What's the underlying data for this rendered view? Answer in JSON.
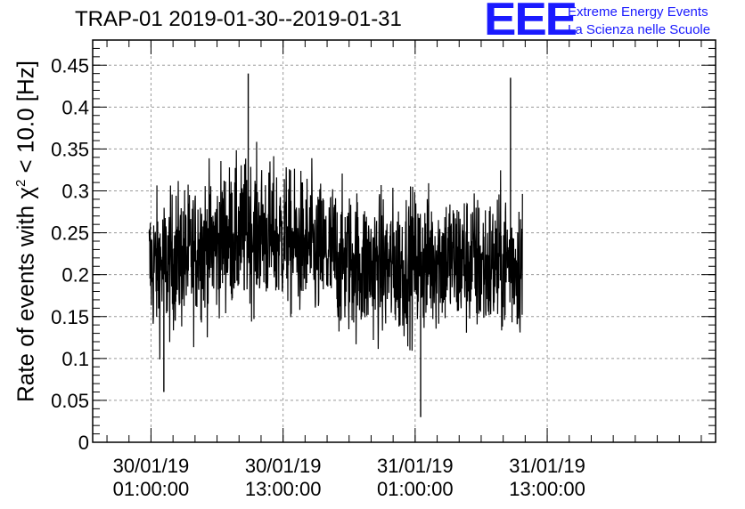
{
  "title": "TRAP-01 2019-01-30--2019-01-31",
  "logo": {
    "mark": "EEE",
    "line1": "Extreme Energy Events",
    "line2": "La Scienza nelle Scuole",
    "color": "#1a1aff"
  },
  "chart_data": {
    "type": "line",
    "title": "TRAP-01 2019-01-30--2019-01-31",
    "ylabel_prefix": "Rate of events with ",
    "ylabel_symbol": "χ",
    "ylabel_sup": "2",
    "ylabel_suffix": " < 10.0 [Hz]",
    "ylim": [
      0,
      0.48
    ],
    "yticks": [
      "0",
      "0.05",
      "0.1",
      "0.15",
      "0.2",
      "0.25",
      "0.3",
      "0.35",
      "0.4",
      "0.45"
    ],
    "xlim_hours_from_30_01_19_00_00": [
      -4.3,
      52.3
    ],
    "xticks": [
      {
        "hour": 1,
        "date": "30/01/19",
        "time": "01:00:00"
      },
      {
        "hour": 13,
        "date": "30/01/19",
        "time": "13:00:00"
      },
      {
        "hour": 25,
        "date": "31/01/19",
        "time": "01:00:00"
      },
      {
        "hour": 37,
        "date": "31/01/19",
        "time": "13:00:00"
      }
    ],
    "grid": true,
    "series": [
      {
        "color": "#000000",
        "x_start": "30/01/19 00:50:00",
        "x_end": "31/01/19 10:45:00",
        "approx_mean_by_segment": [
          0.21,
          0.22,
          0.235,
          0.245,
          0.25,
          0.245,
          0.235,
          0.225,
          0.215,
          0.21,
          0.21,
          0.215,
          0.22,
          0.215,
          0.21,
          0.215
        ],
        "approx_spread_range": [
          0.03,
          0.44
        ],
        "notable_extremes": [
          {
            "time": "30/01/19 09:50:00",
            "value": 0.44
          },
          {
            "time": "31/01/19 09:40:00",
            "value": 0.435
          },
          {
            "time": "31/01/19 01:30:00",
            "value": 0.03
          },
          {
            "time": "30/01/19 02:10:00",
            "value": 0.06
          }
        ]
      }
    ]
  }
}
